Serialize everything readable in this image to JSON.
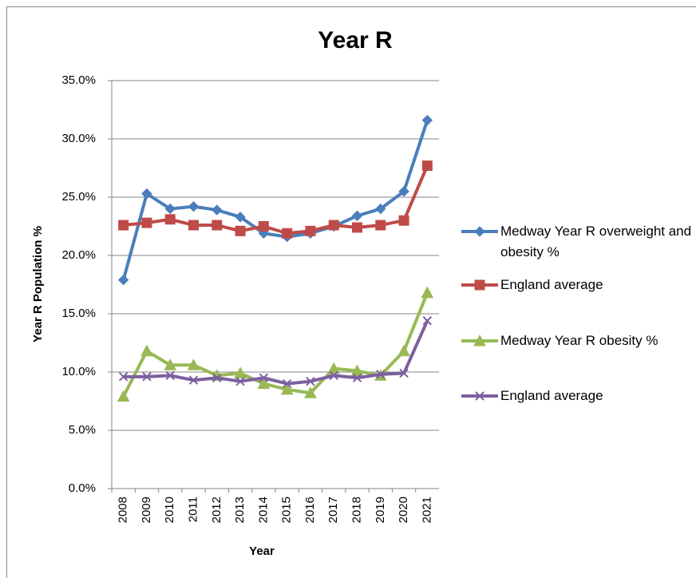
{
  "chart_data": {
    "type": "line",
    "title": "Year R",
    "x_label": "Year",
    "y_label": "Year R Population %",
    "categories": [
      "2008",
      "2009",
      "2010",
      "2011",
      "2012",
      "2013",
      "2014",
      "2015",
      "2016",
      "2017",
      "2018",
      "2019",
      "2020",
      "2021"
    ],
    "series": [
      {
        "name": "Medway Year R overweight and obesity %",
        "color": "#4a7ebb",
        "marker": "diamond",
        "values": [
          17.9,
          25.3,
          24.0,
          24.2,
          23.9,
          23.3,
          21.9,
          21.6,
          21.9,
          22.5,
          23.4,
          24.0,
          25.5,
          31.6
        ]
      },
      {
        "name": "England average",
        "color": "#be4b48",
        "marker": "square",
        "values": [
          22.6,
          22.8,
          23.1,
          22.6,
          22.6,
          22.1,
          22.5,
          21.9,
          22.1,
          22.6,
          22.4,
          22.6,
          23.0,
          27.7
        ]
      },
      {
        "name": " Medway Year R obesity %",
        "color": "#98b954",
        "marker": "triangle",
        "values": [
          7.9,
          11.8,
          10.6,
          10.6,
          9.7,
          9.9,
          9.0,
          8.5,
          8.2,
          10.3,
          10.1,
          9.7,
          11.8,
          16.8
        ]
      },
      {
        "name": "England average",
        "color": "#7d60a0",
        "marker": "x",
        "values": [
          9.6,
          9.6,
          9.7,
          9.3,
          9.5,
          9.2,
          9.5,
          9.0,
          9.2,
          9.7,
          9.5,
          9.8,
          9.9,
          14.4
        ]
      }
    ],
    "ylim": [
      0,
      35
    ],
    "yticks": [
      {
        "value": 0,
        "label": "0.0%"
      },
      {
        "value": 5,
        "label": "5.0%"
      },
      {
        "value": 10,
        "label": "10.0%"
      },
      {
        "value": 15,
        "label": "15.0%"
      },
      {
        "value": 20,
        "label": "20.0%"
      },
      {
        "value": 25,
        "label": "25.0%"
      },
      {
        "value": 30,
        "label": "30.0%"
      },
      {
        "value": 35,
        "label": "35.0%"
      }
    ],
    "grid": true,
    "legend": "right"
  }
}
